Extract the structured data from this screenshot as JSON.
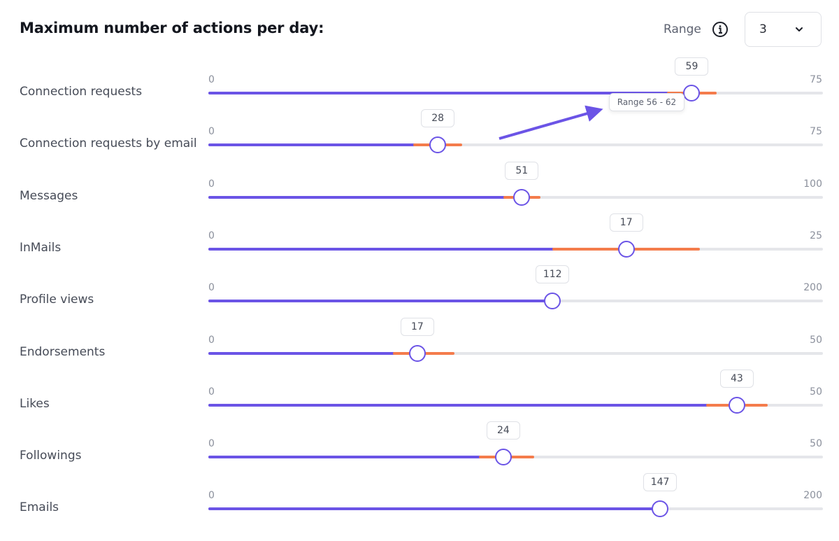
{
  "header": {
    "title": "Maximum number of actions per day:",
    "range_label": "Range",
    "range_value": "3"
  },
  "tooltip": {
    "text": "Range 56 - 62"
  },
  "colors": {
    "accent": "#6b54e6",
    "range_band": "#f47c4c",
    "track": "#e5e6ea"
  },
  "sliders": [
    {
      "label": "Connection requests",
      "min": "0",
      "max": "75",
      "value": "59",
      "band_low": 56,
      "band_high": 62
    },
    {
      "label": "Connection requests by email",
      "min": "0",
      "max": "75",
      "value": "28",
      "band_low": 25,
      "band_high": 31
    },
    {
      "label": "Messages",
      "min": "0",
      "max": "100",
      "value": "51",
      "band_low": 48,
      "band_high": 54
    },
    {
      "label": "InMails",
      "min": "0",
      "max": "25",
      "value": "17",
      "band_low": 14,
      "band_high": 20
    },
    {
      "label": "Profile views",
      "min": "0",
      "max": "200",
      "value": "112",
      "band_low": 112,
      "band_high": 112
    },
    {
      "label": "Endorsements",
      "min": "0",
      "max": "50",
      "value": "17",
      "band_low": 15,
      "band_high": 20
    },
    {
      "label": "Likes",
      "min": "0",
      "max": "50",
      "value": "43",
      "band_low": 40.5,
      "band_high": 45.5
    },
    {
      "label": "Followings",
      "min": "0",
      "max": "50",
      "value": "24",
      "band_low": 22,
      "band_high": 26.5
    },
    {
      "label": "Emails",
      "min": "0",
      "max": "200",
      "value": "147",
      "band_low": 147,
      "band_high": 147
    }
  ]
}
